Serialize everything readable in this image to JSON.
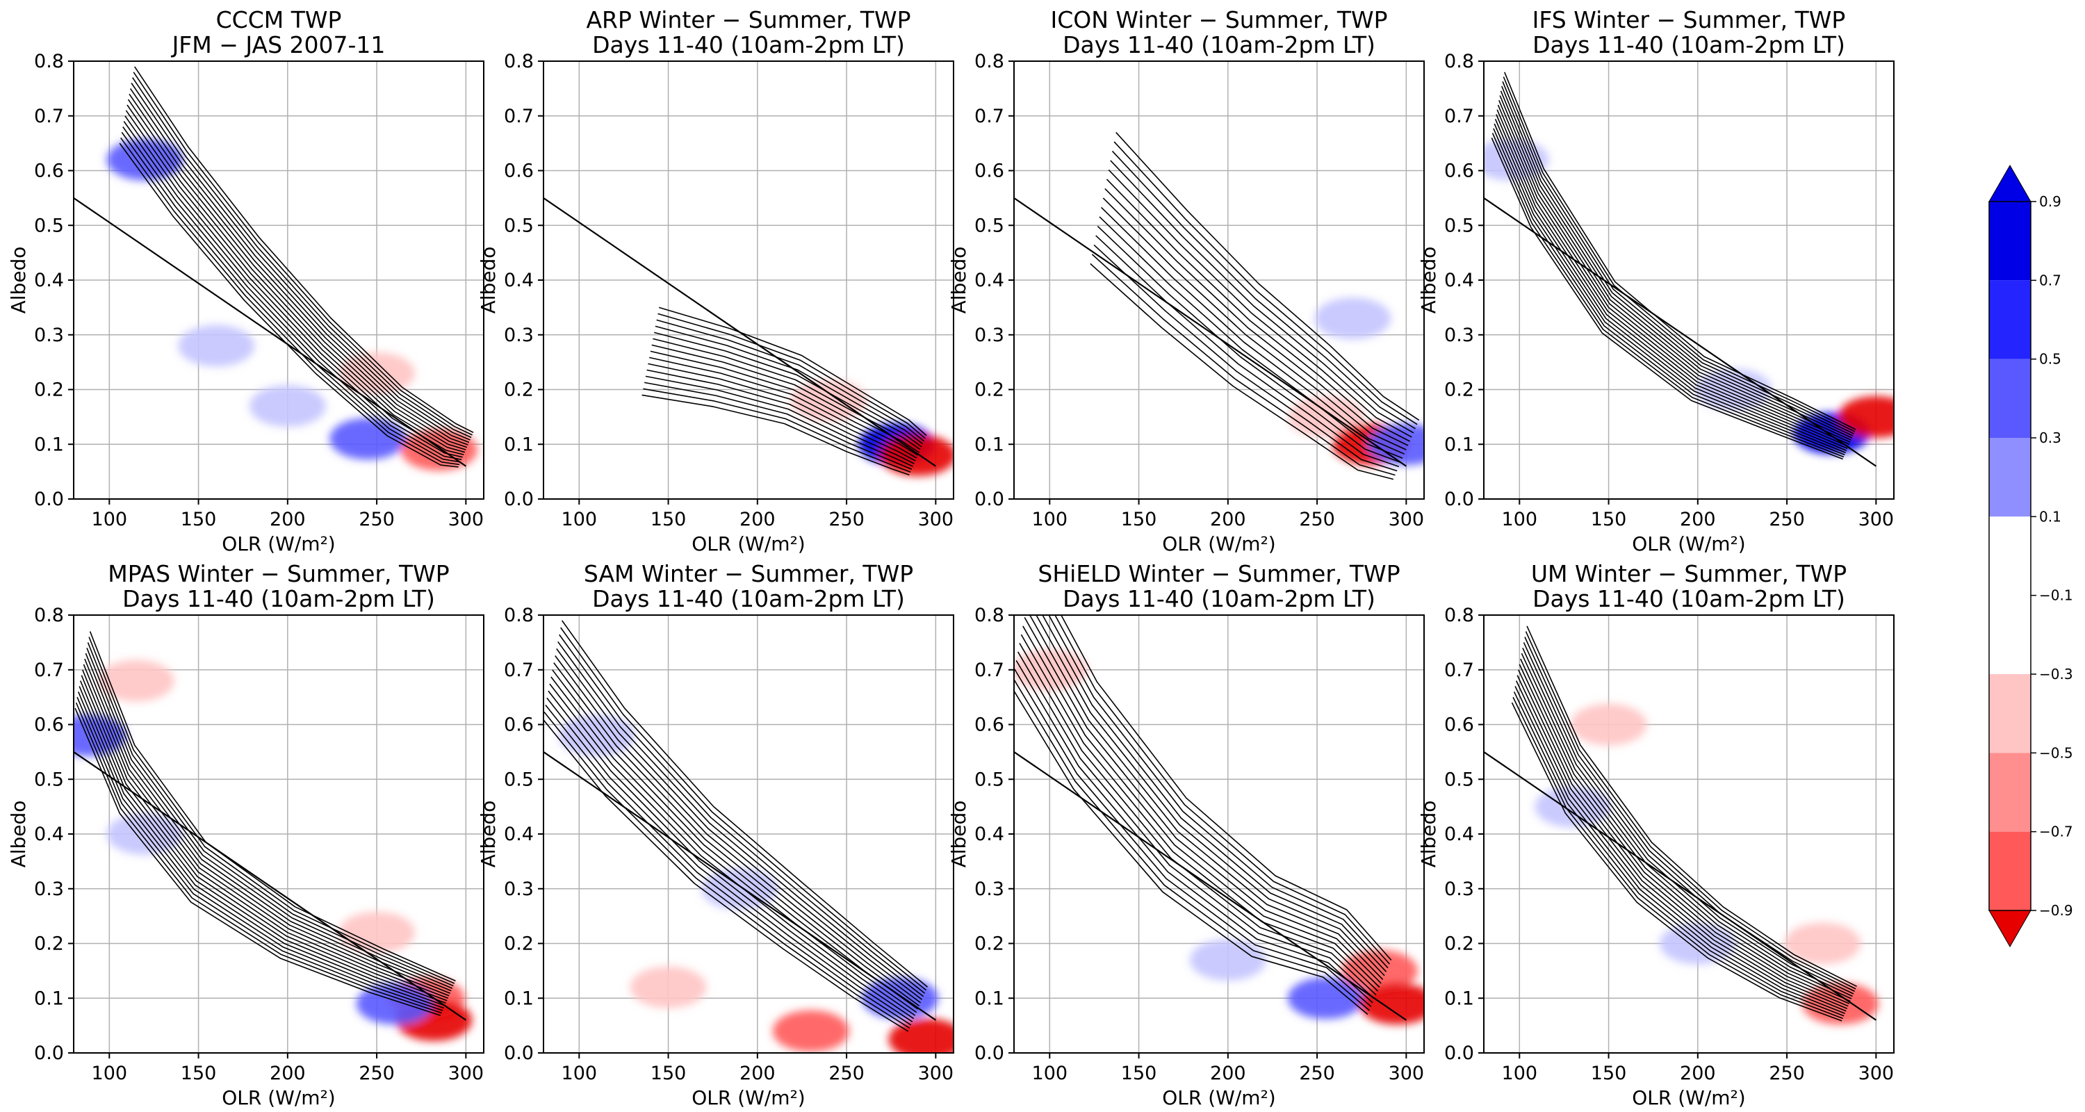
{
  "colors": {
    "blue_levels": [
      "#c4c4ff",
      "#8f8fff",
      "#5959ff",
      "#2424ff",
      "#0000e6"
    ],
    "red_levels": [
      "#ffc4c4",
      "#ff8f8f",
      "#ff5959",
      "#ff2424",
      "#e60000"
    ],
    "contour_line": "#000000",
    "grid": "#b0b0b0"
  },
  "colorbar": {
    "tick_labels": [
      "0.9",
      "0.7",
      "0.5",
      "0.3",
      "0.1",
      "−0.1",
      "−0.3",
      "−0.5",
      "−0.7",
      "−0.9"
    ]
  },
  "chart_data": [
    {
      "type": "contour",
      "title": "CCCM TWP",
      "subtitle": "JFM − JAS 2007-11",
      "xlabel": "OLR (W/m²)",
      "ylabel": "Albedo",
      "xlim": [
        80,
        310
      ],
      "ylim": [
        0,
        0.8
      ],
      "xticks": [
        100,
        150,
        200,
        250,
        300
      ],
      "yticks": [
        0.0,
        0.1,
        0.2,
        0.3,
        0.4,
        0.5,
        0.6,
        0.7,
        0.8
      ],
      "grid": true,
      "reference_line": {
        "x": [
          80,
          300
        ],
        "y": [
          0.55,
          0.06
        ]
      },
      "contour_ridge": {
        "x": [
          110,
          140,
          180,
          220,
          260,
          290,
          300
        ],
        "y": [
          0.72,
          0.58,
          0.42,
          0.28,
          0.16,
          0.1,
          0.09
        ]
      },
      "contour_halfwidth": 0.07,
      "shading": [
        {
          "x": 120,
          "y": 0.62,
          "v": 0.5
        },
        {
          "x": 160,
          "y": 0.28,
          "v": 0.3
        },
        {
          "x": 200,
          "y": 0.17,
          "v": 0.3
        },
        {
          "x": 245,
          "y": 0.11,
          "v": 0.5
        },
        {
          "x": 285,
          "y": 0.09,
          "v": -0.7
        },
        {
          "x": 250,
          "y": 0.23,
          "v": -0.1
        }
      ]
    },
    {
      "type": "contour",
      "title": "ARP Winter − Summer, TWP",
      "subtitle": "Days 11-40 (10am-2pm LT)",
      "xlabel": "OLR (W/m²)",
      "ylabel": "Albedo",
      "xlim": [
        80,
        310
      ],
      "ylim": [
        0,
        0.8
      ],
      "xticks": [
        100,
        150,
        200,
        250,
        300
      ],
      "yticks": [
        0.0,
        0.1,
        0.2,
        0.3,
        0.4,
        0.5,
        0.6,
        0.7,
        0.8
      ],
      "grid": true,
      "reference_line": {
        "x": [
          80,
          300
        ],
        "y": [
          0.55,
          0.06
        ]
      },
      "contour_ridge": {
        "x": [
          140,
          180,
          220,
          255,
          280,
          290
        ],
        "y": [
          0.27,
          0.24,
          0.2,
          0.14,
          0.1,
          0.08
        ]
      },
      "contour_halfwidth": 0.08,
      "shading": [
        {
          "x": 278,
          "y": 0.1,
          "v": 0.9
        },
        {
          "x": 290,
          "y": 0.08,
          "v": -0.9
        },
        {
          "x": 240,
          "y": 0.18,
          "v": -0.3
        }
      ]
    },
    {
      "type": "contour",
      "title": "ICON Winter − Summer, TWP",
      "subtitle": "Days 11-40 (10am-2pm LT)",
      "xlabel": "OLR (W/m²)",
      "ylabel": "Albedo",
      "xlim": [
        80,
        310
      ],
      "ylim": [
        0,
        0.8
      ],
      "xticks": [
        100,
        150,
        200,
        250,
        300
      ],
      "yticks": [
        0.0,
        0.1,
        0.2,
        0.3,
        0.4,
        0.5,
        0.6,
        0.7,
        0.8
      ],
      "grid": true,
      "reference_line": {
        "x": [
          80,
          300
        ],
        "y": [
          0.55,
          0.06
        ]
      },
      "contour_ridge": {
        "x": [
          130,
          170,
          210,
          250,
          280,
          300
        ],
        "y": [
          0.55,
          0.42,
          0.3,
          0.2,
          0.12,
          0.09
        ]
      },
      "contour_halfwidth": 0.12,
      "shading": [
        {
          "x": 255,
          "y": 0.15,
          "v": -0.3
        },
        {
          "x": 280,
          "y": 0.1,
          "v": -0.9
        },
        {
          "x": 300,
          "y": 0.1,
          "v": 0.5
        },
        {
          "x": 270,
          "y": 0.33,
          "v": 0.3
        }
      ]
    },
    {
      "type": "contour",
      "title": "IFS Winter − Summer, TWP",
      "subtitle": "Days 11-40 (10am-2pm LT)",
      "xlabel": "OLR (W/m²)",
      "ylabel": "Albedo",
      "xlim": [
        80,
        310
      ],
      "ylim": [
        0,
        0.8
      ],
      "xticks": [
        100,
        150,
        200,
        250,
        300
      ],
      "yticks": [
        0.0,
        0.1,
        0.2,
        0.3,
        0.4,
        0.5,
        0.6,
        0.7,
        0.8
      ],
      "grid": true,
      "reference_line": {
        "x": [
          80,
          300
        ],
        "y": [
          0.55,
          0.06
        ]
      },
      "contour_ridge": {
        "x": [
          88,
          110,
          150,
          200,
          250,
          285
        ],
        "y": [
          0.72,
          0.55,
          0.35,
          0.22,
          0.15,
          0.1
        ]
      },
      "contour_halfwidth": 0.06,
      "shading": [
        {
          "x": 95,
          "y": 0.62,
          "v": 0.3
        },
        {
          "x": 220,
          "y": 0.2,
          "v": 0.3
        },
        {
          "x": 275,
          "y": 0.12,
          "v": 0.9
        },
        {
          "x": 300,
          "y": 0.15,
          "v": -0.9
        }
      ]
    },
    {
      "type": "contour",
      "title": "MPAS Winter − Summer, TWP",
      "subtitle": "Days 11-40 (10am-2pm LT)",
      "xlabel": "OLR (W/m²)",
      "ylabel": "Albedo",
      "xlim": [
        80,
        310
      ],
      "ylim": [
        0,
        0.8
      ],
      "xticks": [
        100,
        150,
        200,
        250,
        300
      ],
      "yticks": [
        0.0,
        0.1,
        0.2,
        0.3,
        0.4,
        0.5,
        0.6,
        0.7,
        0.8
      ],
      "grid": true,
      "reference_line": {
        "x": [
          80,
          300
        ],
        "y": [
          0.55,
          0.06
        ]
      },
      "contour_ridge": {
        "x": [
          85,
          110,
          150,
          200,
          250,
          290
        ],
        "y": [
          0.7,
          0.5,
          0.33,
          0.22,
          0.15,
          0.1
        ]
      },
      "contour_halfwidth": 0.07,
      "shading": [
        {
          "x": 88,
          "y": 0.58,
          "v": 0.7
        },
        {
          "x": 120,
          "y": 0.4,
          "v": 0.3
        },
        {
          "x": 115,
          "y": 0.68,
          "v": -0.1
        },
        {
          "x": 250,
          "y": 0.22,
          "v": -0.3
        },
        {
          "x": 278,
          "y": 0.1,
          "v": -0.7
        },
        {
          "x": 282,
          "y": 0.06,
          "v": -0.9
        },
        {
          "x": 260,
          "y": 0.09,
          "v": 0.5
        }
      ]
    },
    {
      "type": "contour",
      "title": "SAM Winter − Summer, TWP",
      "subtitle": "Days 11-40 (10am-2pm LT)",
      "xlabel": "OLR (W/m²)",
      "ylabel": "Albedo",
      "xlim": [
        80,
        310
      ],
      "ylim": [
        0,
        0.8
      ],
      "xticks": [
        100,
        150,
        200,
        250,
        300
      ],
      "yticks": [
        0.0,
        0.1,
        0.2,
        0.3,
        0.4,
        0.5,
        0.6,
        0.7,
        0.8
      ],
      "grid": true,
      "reference_line": {
        "x": [
          80,
          300
        ],
        "y": [
          0.55,
          0.06
        ]
      },
      "contour_ridge": {
        "x": [
          85,
          120,
          170,
          220,
          260,
          290
        ],
        "y": [
          0.7,
          0.55,
          0.38,
          0.25,
          0.15,
          0.08
        ]
      },
      "contour_halfwidth": 0.09,
      "shading": [
        {
          "x": 110,
          "y": 0.58,
          "v": 0.3
        },
        {
          "x": 190,
          "y": 0.3,
          "v": 0.3
        },
        {
          "x": 280,
          "y": 0.1,
          "v": 0.7
        },
        {
          "x": 150,
          "y": 0.12,
          "v": -0.3
        },
        {
          "x": 230,
          "y": 0.04,
          "v": -0.5
        },
        {
          "x": 295,
          "y": 0.025,
          "v": -0.9
        }
      ]
    },
    {
      "type": "contour",
      "title": "SHiELD Winter − Summer, TWP",
      "subtitle": "Days 11-40 (10am-2pm LT)",
      "xlabel": "OLR (W/m²)",
      "ylabel": "Albedo",
      "xlim": [
        80,
        310
      ],
      "ylim": [
        0,
        0.8
      ],
      "xticks": [
        100,
        150,
        200,
        250,
        300
      ],
      "yticks": [
        0.0,
        0.1,
        0.2,
        0.3,
        0.4,
        0.5,
        0.6,
        0.7,
        0.8
      ],
      "grid": true,
      "reference_line": {
        "x": [
          80,
          300
        ],
        "y": [
          0.55,
          0.06
        ]
      },
      "contour_ridge": {
        "x": [
          85,
          120,
          170,
          220,
          260,
          285
        ],
        "y": [
          0.78,
          0.58,
          0.38,
          0.25,
          0.2,
          0.12
        ]
      },
      "contour_halfwidth": 0.11,
      "shading": [
        {
          "x": 100,
          "y": 0.7,
          "v": -0.1
        },
        {
          "x": 200,
          "y": 0.17,
          "v": 0.3
        },
        {
          "x": 255,
          "y": 0.1,
          "v": 0.7
        },
        {
          "x": 285,
          "y": 0.15,
          "v": -0.5
        },
        {
          "x": 295,
          "y": 0.09,
          "v": -0.9
        }
      ]
    },
    {
      "type": "contour",
      "title": "UM Winter − Summer, TWP",
      "subtitle": "Days 11-40 (10am-2pm LT)",
      "xlabel": "OLR (W/m²)",
      "ylabel": "Albedo",
      "xlim": [
        80,
        310
      ],
      "ylim": [
        0,
        0.8
      ],
      "xticks": [
        100,
        150,
        200,
        250,
        300
      ],
      "yticks": [
        0.0,
        0.1,
        0.2,
        0.3,
        0.4,
        0.5,
        0.6,
        0.7,
        0.8
      ],
      "grid": true,
      "reference_line": {
        "x": [
          80,
          300
        ],
        "y": [
          0.55,
          0.06
        ]
      },
      "contour_ridge": {
        "x": [
          100,
          130,
          170,
          210,
          250,
          285
        ],
        "y": [
          0.71,
          0.5,
          0.33,
          0.22,
          0.14,
          0.09
        ]
      },
      "contour_halfwidth": 0.07,
      "shading": [
        {
          "x": 150,
          "y": 0.6,
          "v": -0.3
        },
        {
          "x": 130,
          "y": 0.45,
          "v": 0.3
        },
        {
          "x": 200,
          "y": 0.2,
          "v": 0.3
        },
        {
          "x": 270,
          "y": 0.2,
          "v": -0.1
        },
        {
          "x": 280,
          "y": 0.09,
          "v": -0.5
        }
      ]
    }
  ]
}
